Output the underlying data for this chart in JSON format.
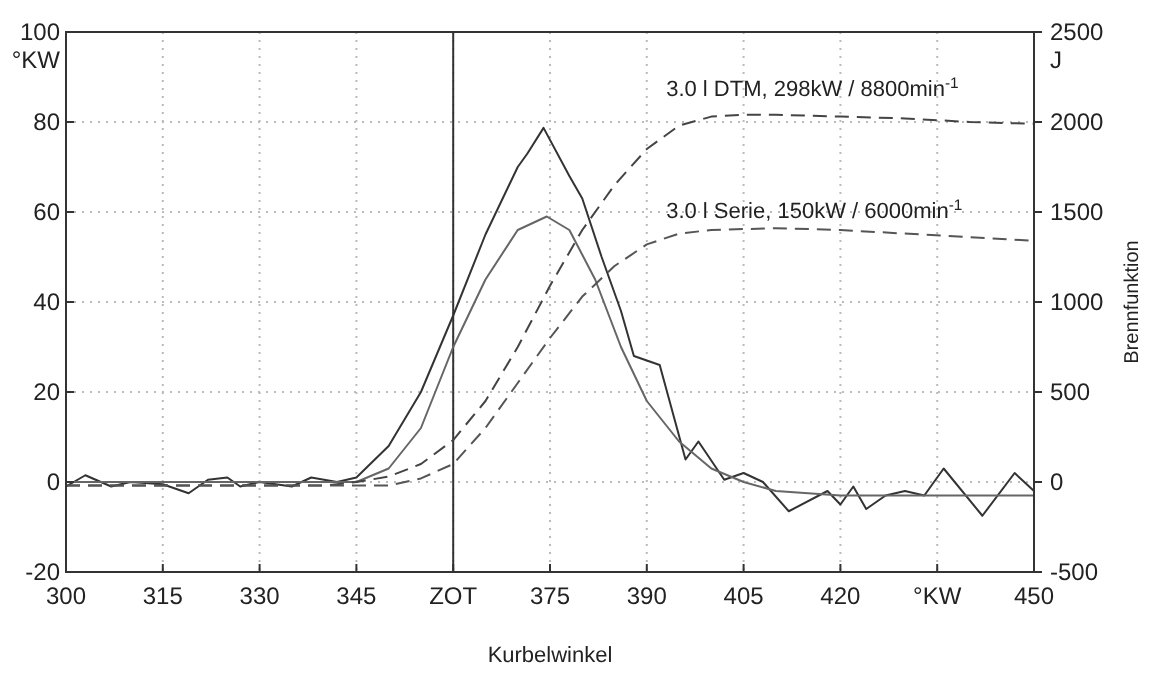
{
  "chart_data": {
    "type": "line",
    "xlabel": "Kurbelwinkel",
    "ylabel": "°KW",
    "y2label": "Brennfunktion",
    "xlim": [
      300,
      450
    ],
    "xticks": [
      300,
      315,
      330,
      345,
      {
        "value": 360,
        "label": "ZOT"
      },
      375,
      390,
      405,
      420,
      {
        "value": 435,
        "label": "°KW"
      },
      450
    ],
    "ylim": [
      -20,
      100
    ],
    "yticks": [
      -20,
      0,
      20,
      40,
      60,
      80,
      100
    ],
    "y2lim": [
      -500,
      2500
    ],
    "y2ticks": [
      -500,
      0,
      500,
      1000,
      1500,
      2000,
      2500
    ],
    "grid": true,
    "line_style": "solid",
    "ref_lines": [
      {
        "axis": "x",
        "value": 360,
        "color": "#333333"
      }
    ],
    "annotations": [
      "3.0 l DTM, 298kW / 8800min$^{-1}$",
      "3.0 l Serie, 150kW / 6000min$^{-1}$",
      "J"
    ],
    "series": [
      {
        "color": "#333333",
        "x": [
          300,
          303,
          307,
          310,
          315,
          319,
          322,
          325,
          327,
          330,
          335,
          338,
          342,
          345,
          350,
          355,
          360,
          365,
          370,
          371.5,
          374,
          378,
          380,
          383,
          386,
          388,
          390,
          392,
          396,
          398,
          402,
          405,
          408,
          412,
          418,
          420,
          422,
          424,
          427,
          430,
          433,
          436,
          442,
          447,
          450
        ],
        "values": [
          -1,
          1.5,
          -1,
          0,
          -0.5,
          -2.5,
          0.5,
          1,
          -1,
          0,
          -1,
          1,
          0,
          1,
          8,
          20,
          37,
          55,
          70,
          73,
          78.7,
          68,
          63,
          50,
          38,
          28,
          27,
          26,
          5,
          9,
          0.5,
          2,
          0,
          -6.5,
          -2,
          -5,
          -1,
          -6,
          -3,
          -2,
          -3,
          3,
          -7.5,
          2,
          -2
        ]
      },
      {
        "color": "#666666",
        "x": [
          300,
          320,
          340,
          345,
          350,
          355,
          360,
          365,
          370,
          374.5,
          378,
          382,
          386,
          390,
          395,
          400,
          405,
          410,
          420,
          435,
          450
        ],
        "values": [
          0,
          0,
          0,
          0,
          3,
          12,
          30,
          45,
          56,
          59,
          56,
          45,
          30,
          18,
          9,
          3,
          0,
          -2,
          -3,
          -3,
          -3
        ]
      },
      {
        "color": "#444444",
        "axis": "y2",
        "line_style": "dashed",
        "x": [
          300,
          320,
          340,
          345,
          350,
          355,
          360,
          365,
          370,
          375,
          380,
          385,
          390,
          395,
          400,
          405,
          410,
          420,
          430,
          440,
          450
        ],
        "values": [
          -20,
          -20,
          -20,
          0,
          30,
          100,
          233,
          450,
          750,
          1090,
          1400,
          1650,
          1850,
          1980,
          2030,
          2040,
          2040,
          2030,
          2020,
          2000,
          1990
        ]
      },
      {
        "color": "#555555",
        "axis": "y2",
        "line_style": "dashed",
        "x": [
          300,
          320,
          340,
          350,
          355,
          360,
          365,
          370,
          375,
          380,
          385,
          390,
          395,
          400,
          410,
          420,
          430,
          440,
          450
        ],
        "values": [
          -20,
          -20,
          -20,
          -20,
          20,
          100,
          300,
          550,
          800,
          1030,
          1200,
          1320,
          1380,
          1400,
          1410,
          1400,
          1380,
          1360,
          1340
        ]
      }
    ]
  }
}
